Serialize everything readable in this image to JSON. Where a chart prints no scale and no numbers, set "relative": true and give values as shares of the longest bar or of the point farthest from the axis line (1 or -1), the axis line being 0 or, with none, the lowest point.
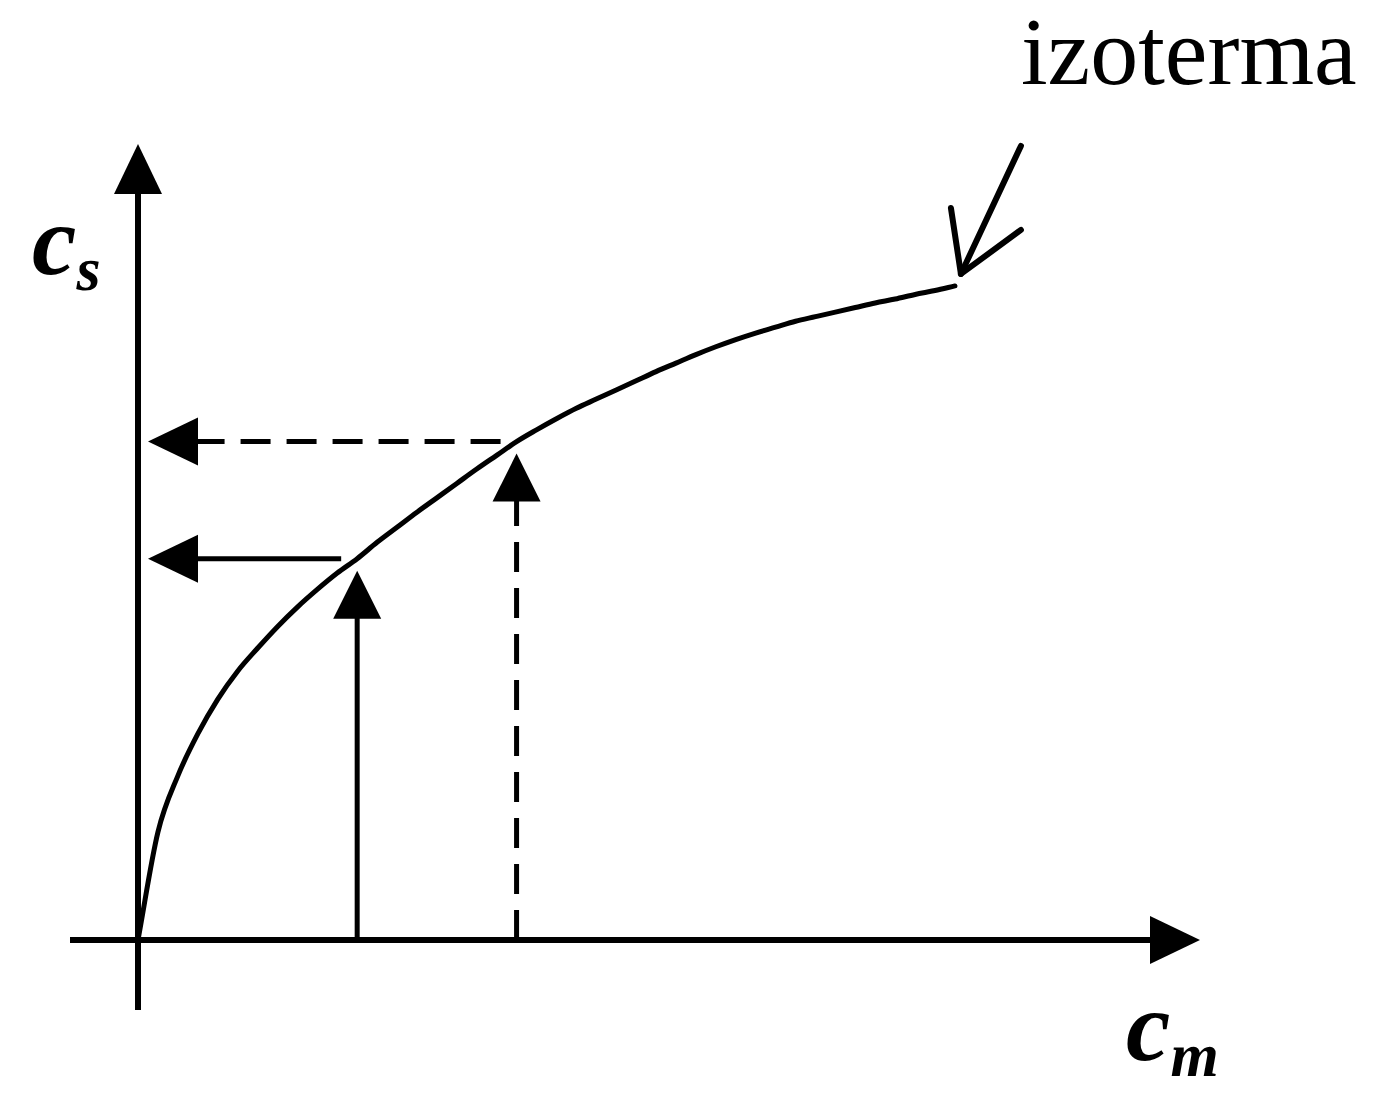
{
  "chart_data": {
    "type": "line",
    "relative": true,
    "xlabel": "c$_{m}$",
    "ylabel": "c$_{s}$",
    "annotations": [
      "izoterma"
    ],
    "color": "#000000",
    "marker": "none",
    "line_style": "solid",
    "categories": [
      null,
      null,
      null,
      null,
      null,
      null,
      null,
      null,
      null,
      null,
      null,
      null,
      null,
      null,
      null,
      null,
      null,
      null,
      null,
      null,
      null,
      null,
      null,
      null,
      null,
      null,
      null,
      null,
      null,
      null,
      null,
      null,
      null,
      null,
      null,
      null,
      null,
      null,
      null,
      null,
      null,
      null
    ],
    "values": [
      0,
      0.165,
      0.251,
      0.315,
      0.368,
      0.411,
      0.446,
      0.479,
      0.509,
      0.536,
      0.561,
      0.583,
      0.608,
      0.631,
      0.654,
      0.676,
      0.698,
      0.72,
      0.741,
      0.762,
      0.78,
      0.797,
      0.813,
      0.827,
      0.841,
      0.855,
      0.869,
      0.882,
      0.895,
      0.907,
      0.918,
      0.928,
      0.937,
      0.946,
      0.953,
      0.96,
      0.967,
      0.974,
      0.98,
      0.987,
      0.993,
      1
    ]
  }
}
